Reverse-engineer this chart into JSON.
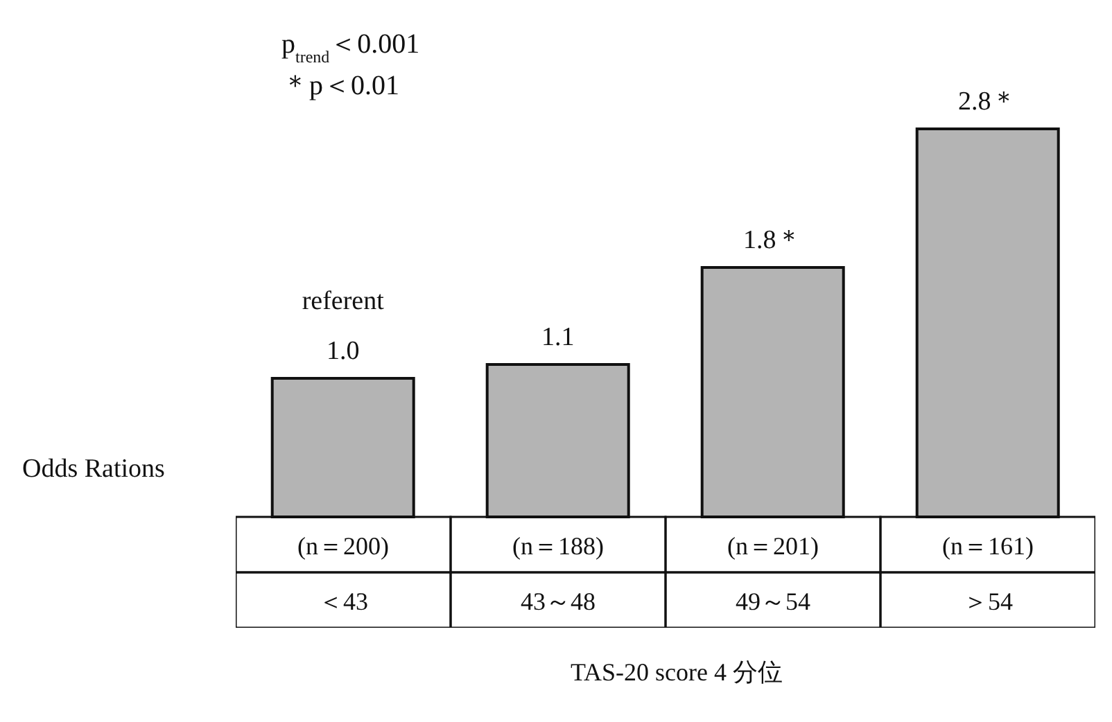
{
  "chart_data": {
    "type": "bar",
    "ylabel": "Odds Rations",
    "xlabel": "TAS-20 score 4 分位",
    "categories": [
      "＜43",
      "43～48",
      "49～54",
      "＞54"
    ],
    "values": [
      1.0,
      1.1,
      1.8,
      2.8
    ],
    "value_labels": [
      "1.0",
      "1.1",
      "1.8＊",
      "2.8＊"
    ],
    "color": "#b4b4b4",
    "annotations": [
      "p$_{trend}$＜0.001",
      "＊p＜0.01",
      {
        "text": "referent",
        "x": "＜43",
        "y": 1.0
      },
      "(n＝200)",
      "(n＝188)",
      "(n＝201)",
      "(n＝161)"
    ]
  }
}
